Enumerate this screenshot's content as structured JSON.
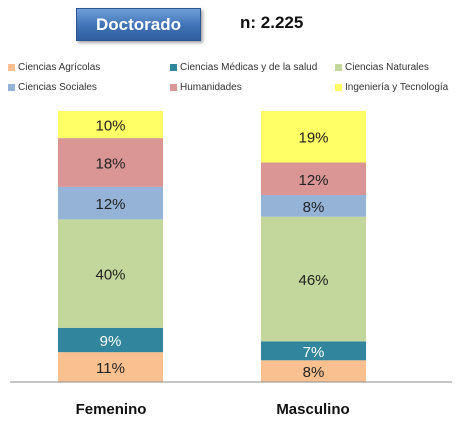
{
  "header": {
    "title": "Doctorado",
    "n_label": "n: 2.225"
  },
  "chart_data": {
    "type": "bar",
    "stacked": true,
    "percent": true,
    "title": "Doctorado",
    "categories": [
      "Femenino",
      "Masculino"
    ],
    "ylim": [
      0,
      100
    ],
    "grid": false,
    "legend_position": "top",
    "series": [
      {
        "name": "Ciencias Agrícolas",
        "color": "#fac090",
        "values": [
          11,
          8
        ],
        "labels": [
          "11%",
          "8%"
        ]
      },
      {
        "name": "Ciencias Médicas y de la salud",
        "color": "#31859c",
        "values": [
          9,
          7
        ],
        "labels": [
          "9%",
          "7%"
        ]
      },
      {
        "name": "Ciencias Naturales",
        "color": "#c3d69b",
        "values": [
          40,
          46
        ],
        "labels": [
          "40%",
          "46%"
        ]
      },
      {
        "name": "Ciencias Sociales",
        "color": "#95b3d7",
        "values": [
          12,
          8
        ],
        "labels": [
          "12%",
          "8%"
        ]
      },
      {
        "name": "Humanidades",
        "color": "#d99694",
        "values": [
          18,
          12
        ],
        "labels": [
          "18%",
          "12%"
        ]
      },
      {
        "name": "Ingeniería y Tecnología",
        "color": "#ffff66",
        "values": [
          10,
          19
        ],
        "labels": [
          "10%",
          "19%"
        ]
      }
    ]
  }
}
